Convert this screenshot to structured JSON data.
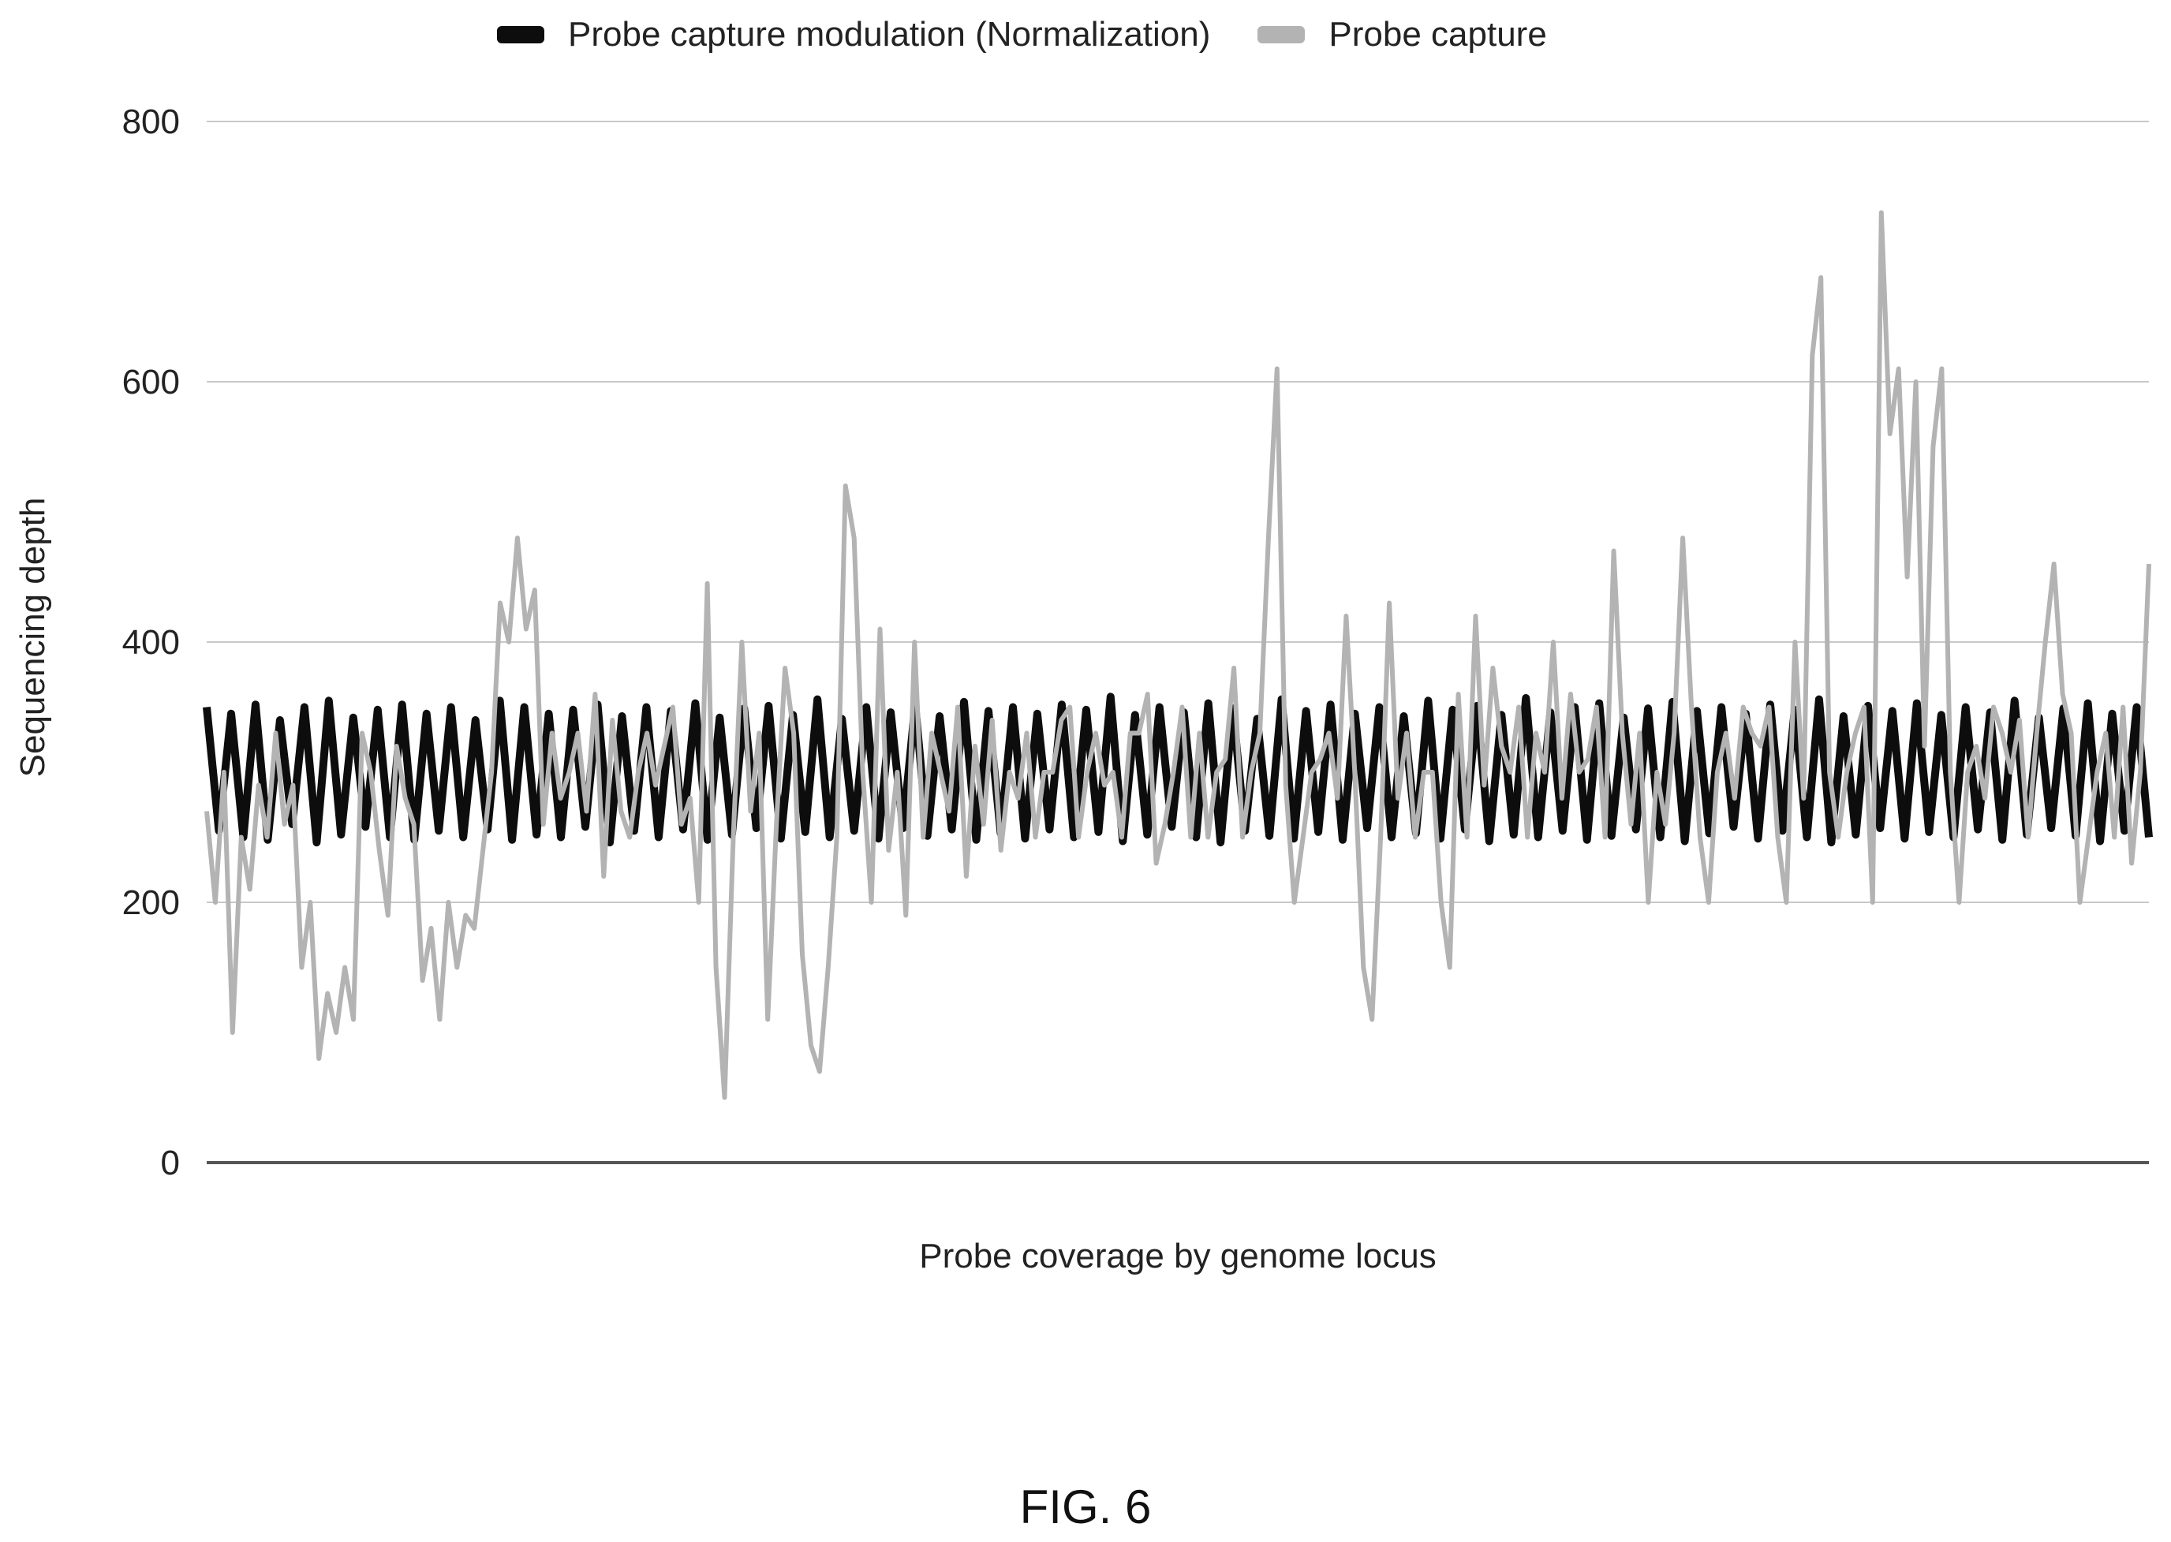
{
  "chart_data": {
    "type": "line",
    "title": "",
    "xlabel": "Probe coverage by genome locus",
    "ylabel": "Sequencing depth",
    "ylim": [
      0,
      800
    ],
    "yticks": [
      0,
      200,
      400,
      600,
      800
    ],
    "grid": true,
    "legend_position": "top",
    "series": [
      {
        "name": "Probe capture modulation (Normalization)",
        "color": "#0d0d0d",
        "style": "dense oscillation",
        "values": [
          350,
          255,
          345,
          250,
          352,
          248,
          340,
          260,
          350,
          246,
          355,
          252,
          342,
          258,
          348,
          250,
          352,
          248,
          345,
          255,
          350,
          250,
          340,
          256,
          355,
          248,
          350,
          252,
          345,
          250,
          348,
          258,
          352,
          246,
          343,
          255,
          350,
          250,
          347,
          256,
          353,
          248,
          342,
          252,
          349,
          257,
          351,
          249,
          344,
          254,
          356,
          250,
          341,
          255,
          350,
          249,
          346,
          257,
          352,
          251,
          343,
          256,
          354,
          248,
          347,
          253,
          350,
          249,
          345,
          256,
          352,
          250,
          348,
          254,
          358,
          247,
          344,
          252,
          350,
          258,
          346,
          250,
          353,
          246,
          349,
          255,
          341,
          251,
          356,
          249,
          347,
          254,
          352,
          248,
          345,
          257,
          350,
          250,
          343,
          253,
          355,
          249,
          348,
          256,
          351,
          247,
          344,
          252,
          357,
          250,
          346,
          255,
          350,
          248,
          353,
          251,
          342,
          256,
          349,
          250,
          354,
          247,
          347,
          253,
          350,
          258,
          345,
          249,
          352,
          255,
          348,
          250,
          356,
          246,
          343,
          252,
          351,
          257,
          347,
          249,
          353,
          254,
          344,
          250,
          350,
          256,
          346,
          248,
          355,
          252,
          342,
          257,
          349,
          251,
          353,
          247,
          345,
          255,
          350,
          250
        ]
      },
      {
        "name": "Probe capture",
        "color": "#b3b3b3",
        "style": "jagged line",
        "values": [
          270,
          200,
          300,
          100,
          250,
          210,
          290,
          250,
          330,
          260,
          290,
          150,
          200,
          80,
          130,
          100,
          150,
          110,
          330,
          300,
          240,
          190,
          320,
          280,
          260,
          140,
          180,
          110,
          200,
          150,
          190,
          180,
          240,
          300,
          430,
          400,
          480,
          410,
          440,
          260,
          330,
          280,
          300,
          330,
          270,
          360,
          220,
          340,
          270,
          250,
          300,
          330,
          290,
          320,
          350,
          260,
          280,
          200,
          445,
          150,
          50,
          250,
          400,
          270,
          330,
          110,
          260,
          380,
          330,
          160,
          90,
          70,
          150,
          250,
          520,
          480,
          300,
          200,
          410,
          240,
          300,
          190,
          400,
          250,
          330,
          300,
          270,
          350,
          220,
          320,
          260,
          340,
          240,
          300,
          280,
          330,
          250,
          300,
          300,
          340,
          350,
          250,
          300,
          330,
          290,
          300,
          250,
          330,
          330,
          360,
          230,
          260,
          300,
          350,
          250,
          330,
          250,
          300,
          310,
          380,
          250,
          300,
          330,
          480,
          610,
          290,
          200,
          250,
          300,
          310,
          330,
          280,
          420,
          300,
          150,
          110,
          250,
          430,
          280,
          330,
          250,
          300,
          300,
          200,
          150,
          360,
          250,
          420,
          290,
          380,
          320,
          300,
          350,
          250,
          330,
          300,
          400,
          280,
          360,
          300,
          310,
          350,
          250,
          470,
          330,
          260,
          330,
          200,
          300,
          260,
          330,
          480,
          350,
          250,
          200,
          300,
          330,
          280,
          350,
          330,
          320,
          350,
          250,
          200,
          400,
          280,
          620,
          680,
          300,
          250,
          300,
          330,
          350,
          200,
          730,
          560,
          610,
          450,
          600,
          320,
          550,
          610,
          300,
          200,
          300,
          320,
          280,
          350,
          330,
          300,
          340,
          250,
          330,
          400,
          460,
          360,
          330,
          200,
          250,
          300,
          330,
          250,
          350,
          230,
          300,
          460
        ]
      }
    ]
  },
  "caption": "FIG. 6"
}
